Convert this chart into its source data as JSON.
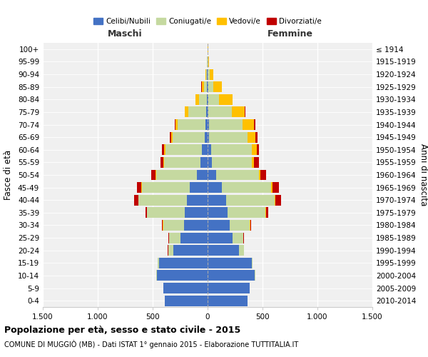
{
  "age_groups": [
    "0-4",
    "5-9",
    "10-14",
    "15-19",
    "20-24",
    "25-29",
    "30-34",
    "35-39",
    "40-44",
    "45-49",
    "50-54",
    "55-59",
    "60-64",
    "65-69",
    "70-74",
    "75-79",
    "80-84",
    "85-89",
    "90-94",
    "95-99",
    "100+"
  ],
  "birth_years": [
    "2010-2014",
    "2005-2009",
    "2000-2004",
    "1995-1999",
    "1990-1994",
    "1985-1989",
    "1980-1984",
    "1975-1979",
    "1970-1974",
    "1965-1969",
    "1960-1964",
    "1955-1959",
    "1950-1954",
    "1945-1949",
    "1940-1944",
    "1935-1939",
    "1930-1934",
    "1925-1929",
    "1920-1924",
    "1915-1919",
    "≤ 1914"
  ],
  "maschi_celibi": [
    390,
    400,
    460,
    440,
    310,
    250,
    215,
    210,
    190,
    160,
    100,
    65,
    55,
    25,
    20,
    15,
    8,
    5,
    4,
    2,
    2
  ],
  "maschi_coniugati": [
    1,
    2,
    5,
    15,
    50,
    100,
    190,
    340,
    440,
    440,
    370,
    330,
    330,
    290,
    250,
    160,
    70,
    30,
    10,
    3,
    1
  ],
  "maschi_vedovi": [
    0,
    0,
    0,
    0,
    0,
    0,
    1,
    2,
    3,
    3,
    5,
    8,
    10,
    15,
    20,
    30,
    30,
    20,
    5,
    1,
    0
  ],
  "maschi_divorziati": [
    0,
    0,
    0,
    0,
    2,
    5,
    10,
    15,
    35,
    40,
    35,
    25,
    20,
    15,
    8,
    5,
    3,
    2,
    1,
    0,
    0
  ],
  "femmine_celibi": [
    365,
    380,
    430,
    400,
    285,
    230,
    200,
    185,
    170,
    130,
    75,
    40,
    30,
    15,
    10,
    8,
    5,
    4,
    3,
    2,
    2
  ],
  "femmine_coniugati": [
    1,
    2,
    4,
    12,
    45,
    95,
    185,
    340,
    440,
    450,
    390,
    360,
    370,
    350,
    310,
    210,
    100,
    45,
    15,
    4,
    1
  ],
  "femmine_vedovi": [
    0,
    0,
    0,
    0,
    0,
    1,
    2,
    5,
    7,
    10,
    15,
    25,
    45,
    70,
    100,
    120,
    120,
    80,
    35,
    8,
    2
  ],
  "femmine_divorziati": [
    0,
    0,
    0,
    0,
    2,
    5,
    12,
    25,
    50,
    60,
    55,
    40,
    25,
    18,
    12,
    8,
    5,
    3,
    1,
    0,
    0
  ],
  "color_celibi": "#4472c4",
  "color_coniugati": "#c5d9a0",
  "color_vedovi": "#ffc000",
  "color_divorziati": "#c00000",
  "title": "Popolazione per età, sesso e stato civile - 2015",
  "subtitle": "COMUNE DI MUGGIÒ (MB) - Dati ISTAT 1° gennaio 2015 - Elaborazione TUTTITALIA.IT",
  "ylabel_left": "Fasce di età",
  "ylabel_right": "Anni di nascita",
  "xlabel_maschi": "Maschi",
  "xlabel_femmine": "Femmine",
  "xlim": 1500,
  "bg_color": "#f0f0f0"
}
